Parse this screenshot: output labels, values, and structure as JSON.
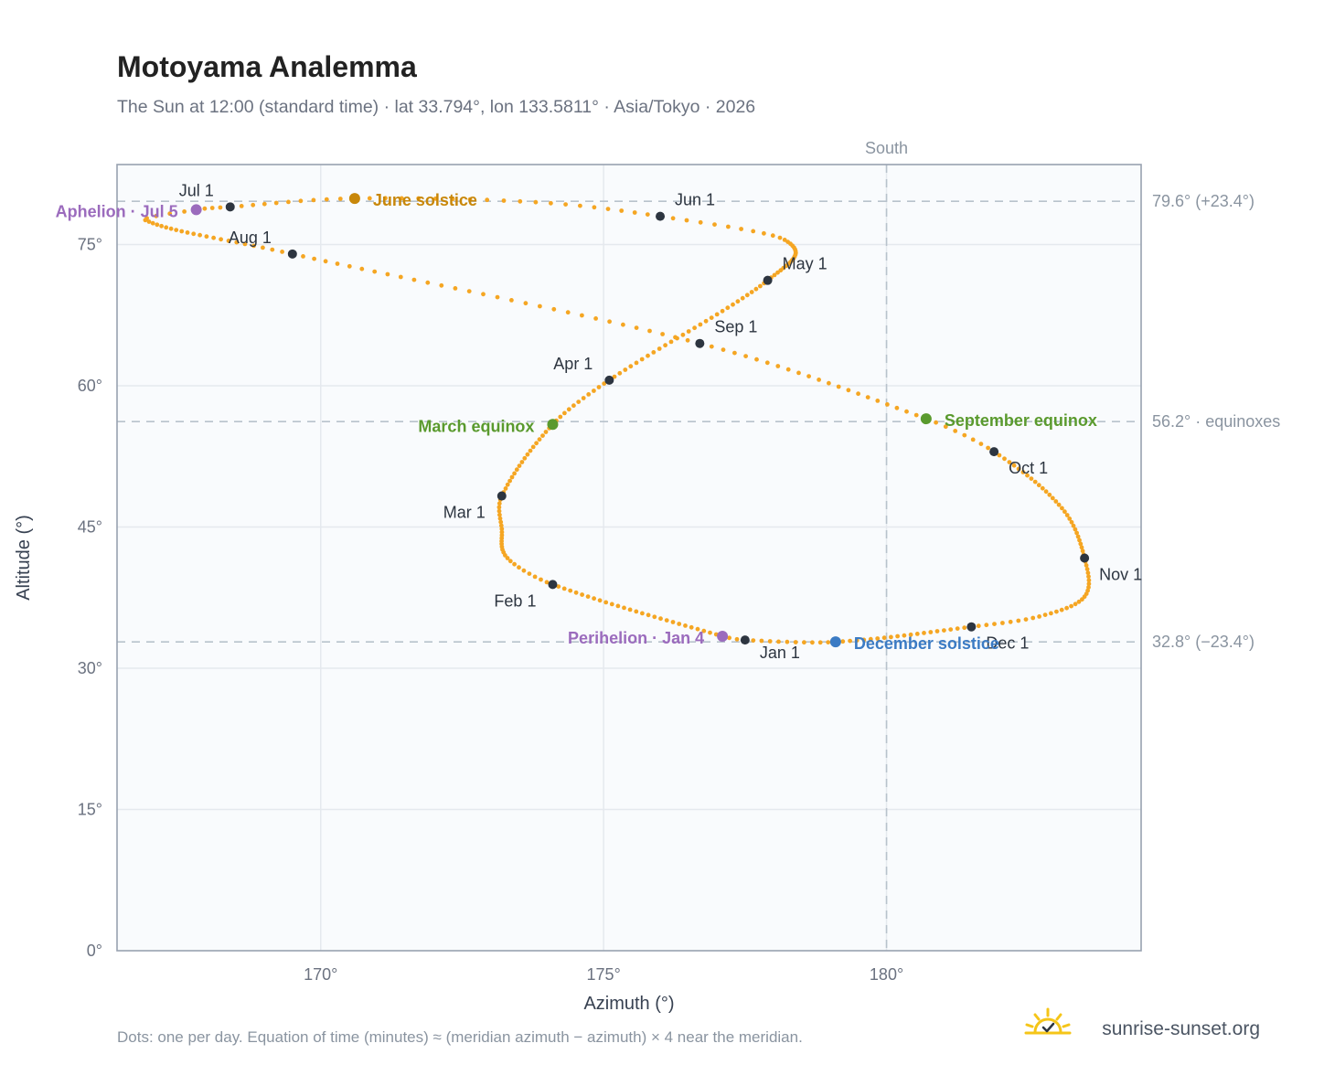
{
  "header": {
    "title": "Motoyama Analemma",
    "subtitle": "The Sun at 12:00 (standard time) · lat 33.794°, lon 133.5811° · Asia/Tokyo · 2026"
  },
  "footer": {
    "note": "Dots: one per day. Equation of time (minutes) ≈ (meridian azimuth − azimuth) × 4 near the meridian.",
    "brand": "sunrise-sunset.org"
  },
  "colors": {
    "curve": "#f5a623",
    "month_dot": "#2d3540",
    "june_solstice": "#c8870a",
    "equinox": "#5a9a2e",
    "december_solstice": "#3b7bc4",
    "apsis": "#9b6bbd",
    "plot_bg": "#f9fbfd",
    "frame": "#98a2b0"
  },
  "chart_data": {
    "type": "scatter",
    "title": "Motoyama Analemma",
    "xlabel": "Azimuth (°)",
    "ylabel": "Altitude (°)",
    "xlim": [
      166.4,
      184.5
    ],
    "ylim": [
      0,
      83.5
    ],
    "x_ticks": [
      170,
      175,
      180
    ],
    "x_tick_labels": [
      "170°",
      "175°",
      "180°"
    ],
    "y_ticks": [
      0,
      15,
      30,
      45,
      60,
      75
    ],
    "y_tick_labels": [
      "0°",
      "15°",
      "30°",
      "45°",
      "60°",
      "75°"
    ],
    "grid": true,
    "vertical_reference": {
      "x": 180,
      "label": "South"
    },
    "horizontal_references": [
      {
        "y": 79.6,
        "label": "79.6° (+23.4°)"
      },
      {
        "y": 56.2,
        "label": "56.2° · equinoxes"
      },
      {
        "y": 32.8,
        "label": "32.8° (−23.4°)"
      }
    ],
    "month_markers": [
      {
        "label": "Jan 1",
        "azimuth": 177.5,
        "altitude": 33.0
      },
      {
        "label": "Feb 1",
        "azimuth": 174.1,
        "altitude": 38.9
      },
      {
        "label": "Mar 1",
        "azimuth": 173.2,
        "altitude": 48.3
      },
      {
        "label": "Apr 1",
        "azimuth": 175.1,
        "altitude": 60.6
      },
      {
        "label": "May 1",
        "azimuth": 177.9,
        "altitude": 71.2
      },
      {
        "label": "Jun 1",
        "azimuth": 176.0,
        "altitude": 78.0
      },
      {
        "label": "Jul 1",
        "azimuth": 168.4,
        "altitude": 79.0
      },
      {
        "label": "Aug 1",
        "azimuth": 169.5,
        "altitude": 74.0
      },
      {
        "label": "Sep 1",
        "azimuth": 176.7,
        "altitude": 64.5
      },
      {
        "label": "Oct 1",
        "azimuth": 181.9,
        "altitude": 53.0
      },
      {
        "label": "Nov 1",
        "azimuth": 183.5,
        "altitude": 41.7
      },
      {
        "label": "Dec 1",
        "azimuth": 181.5,
        "altitude": 34.4
      }
    ],
    "events": [
      {
        "label": "June solstice",
        "azimuth": 170.6,
        "altitude": 79.9,
        "color": "#c8870a"
      },
      {
        "label": "March equinox",
        "azimuth": 174.1,
        "altitude": 55.9,
        "color": "#5a9a2e"
      },
      {
        "label": "September equinox",
        "azimuth": 180.7,
        "altitude": 56.5,
        "color": "#5a9a2e"
      },
      {
        "label": "December solstice",
        "azimuth": 179.1,
        "altitude": 32.8,
        "color": "#3b7bc4"
      },
      {
        "label": "Aphelion · Jul 5",
        "azimuth": 167.8,
        "altitude": 78.7,
        "color": "#9b6bbd"
      },
      {
        "label": "Perihelion · Jan 4",
        "azimuth": 177.1,
        "altitude": 33.4,
        "color": "#9b6bbd"
      }
    ]
  }
}
